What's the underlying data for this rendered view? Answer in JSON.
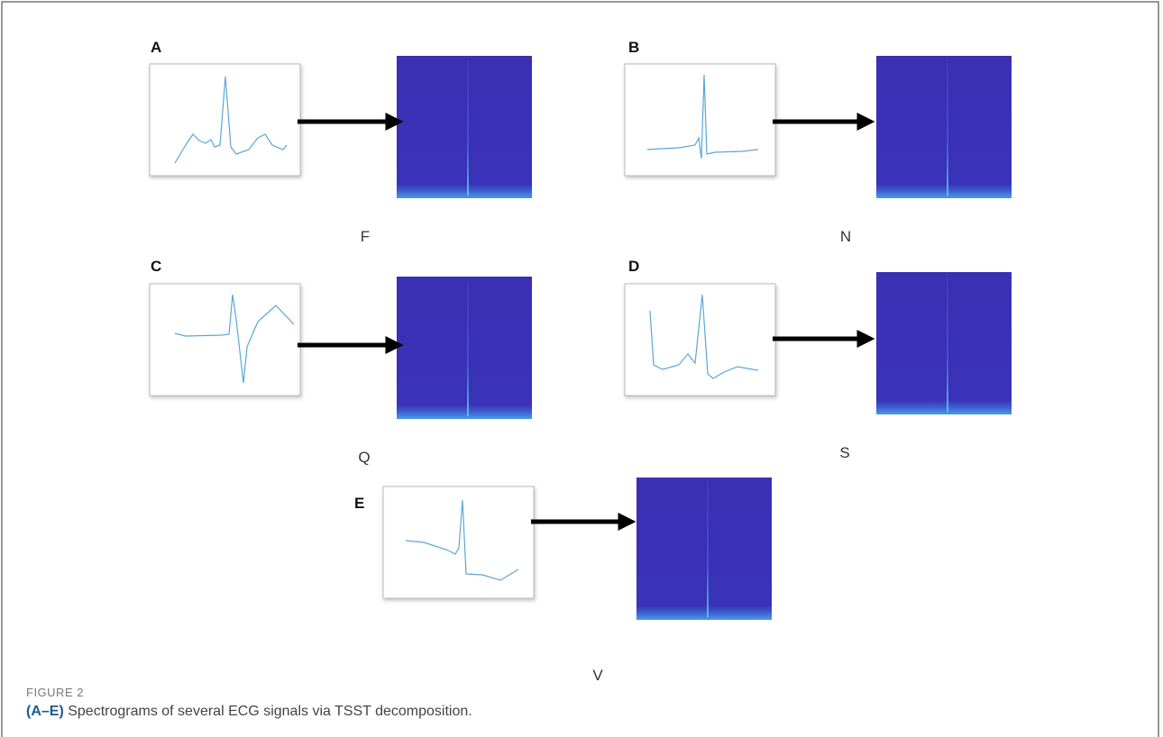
{
  "panels": [
    {
      "label": "A",
      "class": "F"
    },
    {
      "label": "B",
      "class": "N"
    },
    {
      "label": "C",
      "class": "Q"
    },
    {
      "label": "D",
      "class": "S"
    },
    {
      "label": "E",
      "class": "V"
    }
  ],
  "caption": {
    "figure_label": "FIGURE 2",
    "bold": "(A–E)",
    "text": " Spectrograms of several ECG signals via TSST decomposition."
  }
}
